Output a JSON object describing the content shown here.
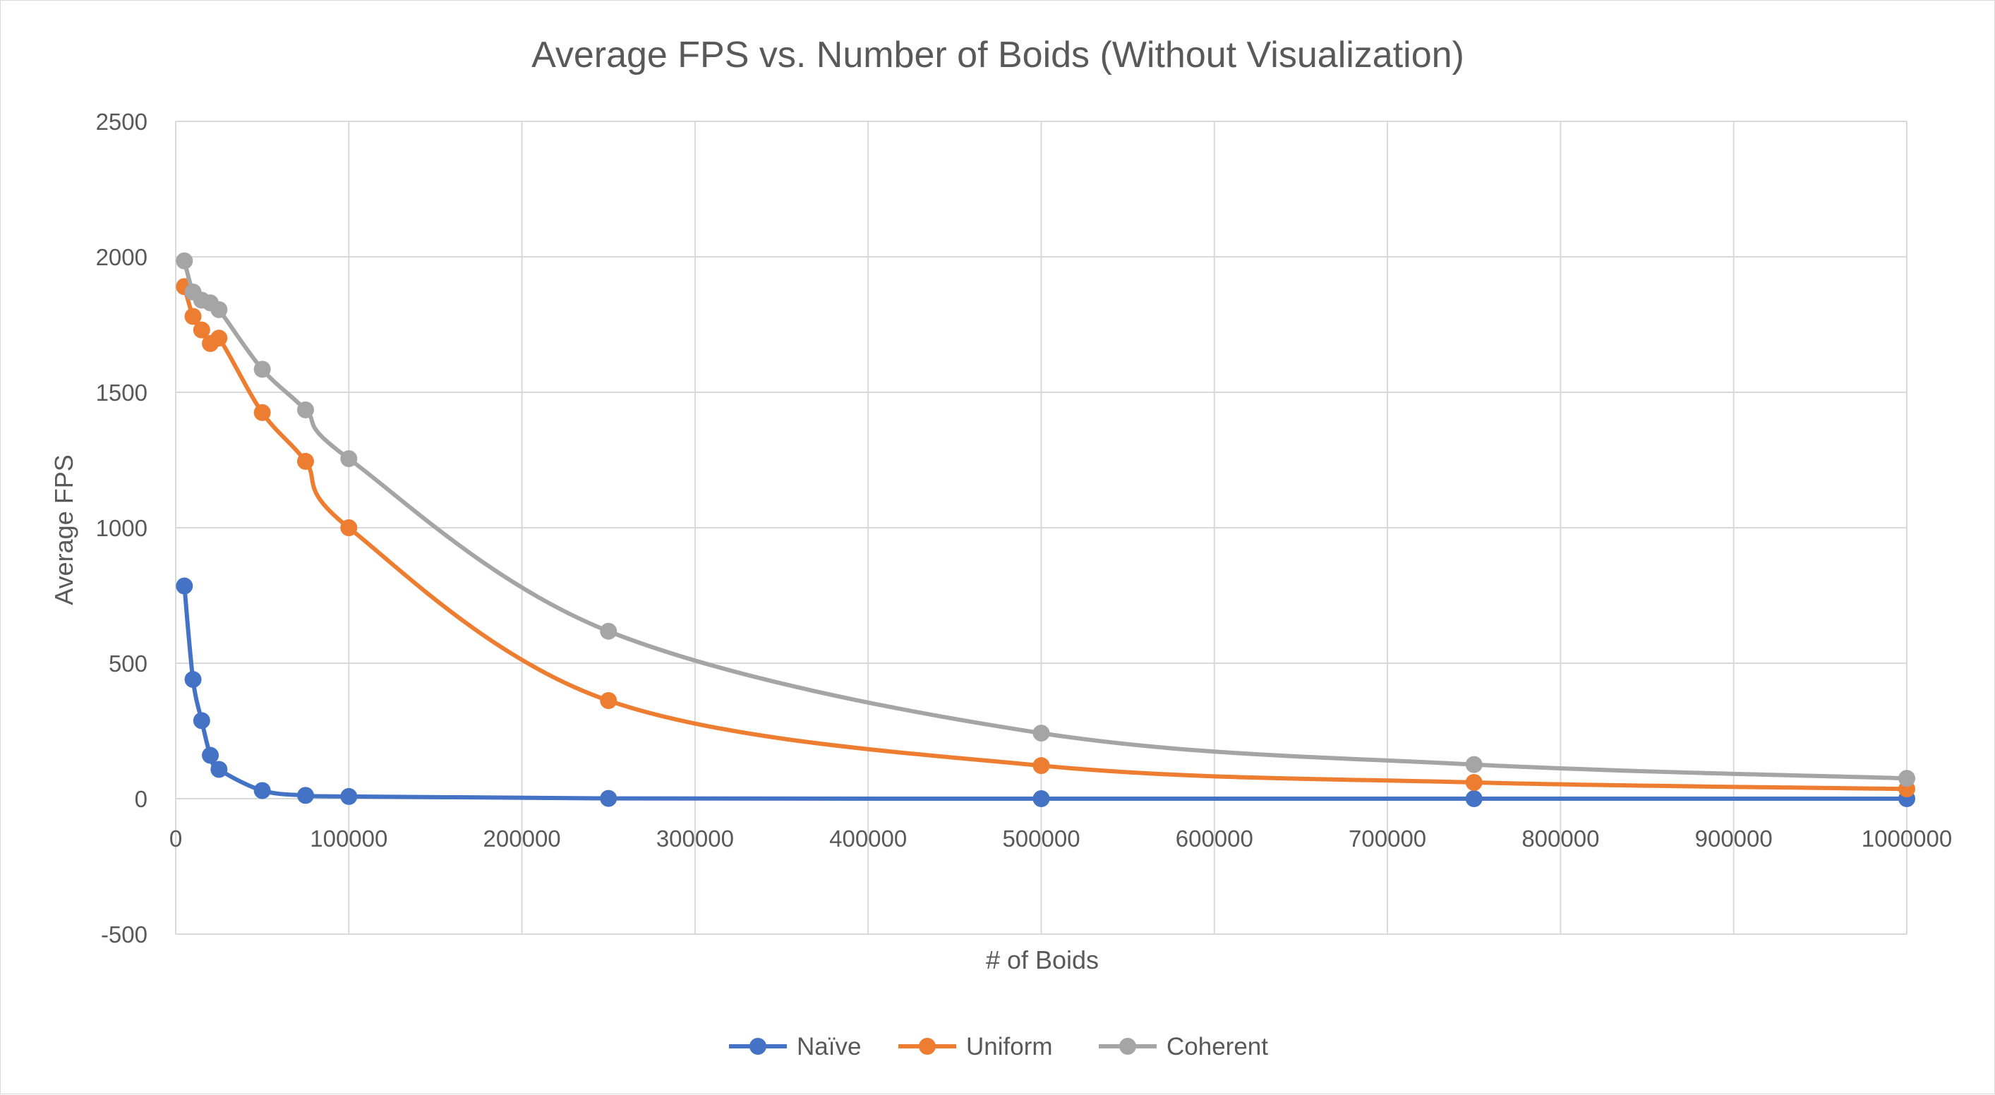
{
  "chart_data": {
    "type": "scatter",
    "title": "Average FPS vs. Number of Boids (Without Visualization)",
    "xlabel": "# of Boids",
    "ylabel": "Average FPS",
    "xlim": [
      0,
      1000000
    ],
    "ylim": [
      -500,
      2500
    ],
    "x_ticks": [
      0,
      100000,
      200000,
      300000,
      400000,
      500000,
      600000,
      700000,
      800000,
      900000,
      1000000
    ],
    "y_ticks": [
      -500,
      0,
      500,
      1000,
      1500,
      2000,
      2500
    ],
    "grid": true,
    "legend_position": "bottom",
    "smooth_lines": true,
    "x": [
      5000,
      10000,
      15000,
      20000,
      25000,
      50000,
      75000,
      100000,
      250000,
      500000,
      750000,
      1000000
    ],
    "series": [
      {
        "name": "Naïve",
        "color": "#4472c4",
        "values": [
          785,
          440,
          288,
          160,
          108,
          30,
          12,
          8,
          1,
          0,
          0,
          0
        ]
      },
      {
        "name": "Uniform",
        "color": "#ed7d31",
        "values": [
          1890,
          1780,
          1730,
          1680,
          1700,
          1425,
          1245,
          1000,
          362,
          122,
          60,
          36
        ]
      },
      {
        "name": "Coherent",
        "color": "#a5a5a5",
        "values": [
          1985,
          1870,
          1840,
          1830,
          1805,
          1585,
          1435,
          1255,
          618,
          242,
          126,
          75
        ]
      }
    ]
  }
}
